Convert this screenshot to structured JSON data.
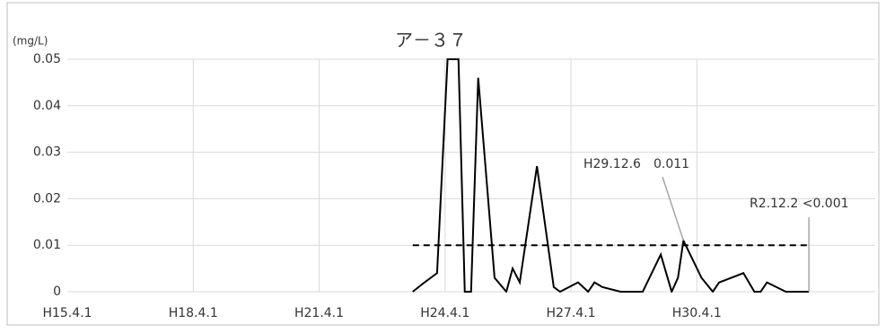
{
  "chart_data": {
    "type": "line",
    "title": "ア－３７",
    "y_label": "(mg/L)",
    "x": [
      2011.48,
      2011.76,
      2012.06,
      2012.31,
      2012.57,
      2012.72,
      2012.87,
      2013.04,
      2013.43,
      2013.71,
      2013.86,
      2014.03,
      2014.44,
      2014.84,
      2014.99,
      2015.42,
      2015.66,
      2015.81,
      2016.0,
      2016.43,
      2016.96,
      2017.39,
      2017.65,
      2017.8,
      2017.93,
      2018.36,
      2018.63,
      2018.78,
      2019.36,
      2019.62,
      2019.77,
      2019.92,
      2020.37,
      2020.92
    ],
    "series": [
      {
        "color": "#000000",
        "values": [
          0,
          0.002,
          0.004,
          0.05,
          0.05,
          0,
          0,
          0.046,
          0.003,
          0,
          0.005,
          0.002,
          0.027,
          0.001,
          0,
          0.002,
          0,
          0.002,
          0.001,
          0,
          0,
          0.008,
          0,
          0.003,
          0.011,
          0.003,
          0,
          0.002,
          0.004,
          0,
          0,
          0.002,
          0,
          0
        ]
      }
    ],
    "reference_line": {
      "y": 0.01,
      "x": [
        2011.48,
        2020.92
      ],
      "color": "#000000"
    },
    "annotations": [
      {
        "text": "H29.12.6　0.011",
        "x": 2017.93,
        "y": 0.011
      },
      {
        "text": "R2.12.2 <0.001",
        "x": 2020.92,
        "y": 0
      }
    ],
    "xlim": [
      2003.25,
      2022.5
    ],
    "xticks": [
      {
        "value": 2003.25,
        "label": "H15.4.1"
      },
      {
        "value": 2006.25,
        "label": "H18.4.1"
      },
      {
        "value": 2009.25,
        "label": "H21.4.1"
      },
      {
        "value": 2012.25,
        "label": "H24.4.1"
      },
      {
        "value": 2015.25,
        "label": "H27.4.1"
      },
      {
        "value": 2018.25,
        "label": "H30.4.1"
      }
    ],
    "ylim": [
      0,
      0.05
    ],
    "yticks": [
      0,
      0.01,
      0.02,
      0.03,
      0.04,
      0.05
    ],
    "grid": true
  }
}
